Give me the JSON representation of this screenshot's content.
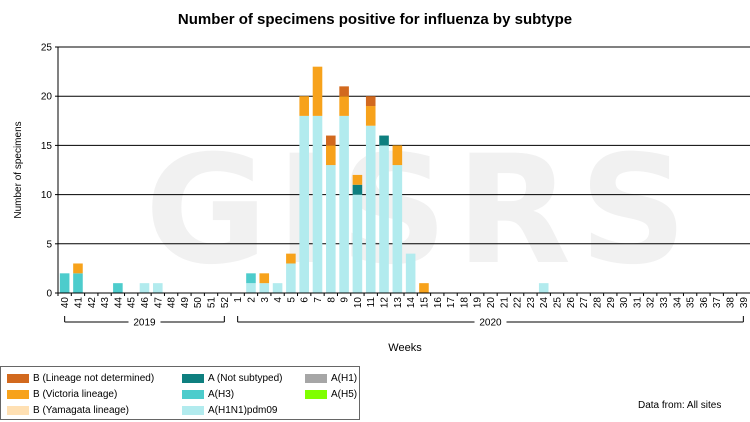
{
  "chart_data": {
    "type": "bar",
    "stacked": true,
    "title": "Number of specimens positive for influenza by subtype",
    "ylabel": "Number of specimens",
    "xlabel": "Weeks",
    "watermark": "GISRS",
    "ylim": [
      0,
      25
    ],
    "yticks": [
      0,
      5,
      10,
      15,
      20,
      25
    ],
    "grid": true,
    "categories": [
      "40",
      "41",
      "42",
      "43",
      "44",
      "45",
      "46",
      "47",
      "48",
      "49",
      "50",
      "51",
      "52",
      "1",
      "2",
      "3",
      "4",
      "5",
      "6",
      "7",
      "8",
      "9",
      "10",
      "11",
      "12",
      "13",
      "14",
      "15",
      "16",
      "17",
      "18",
      "19",
      "20",
      "21",
      "22",
      "23",
      "24",
      "25",
      "26",
      "27",
      "28",
      "29",
      "30",
      "31",
      "32",
      "33",
      "34",
      "35",
      "36",
      "37",
      "38",
      "39"
    ],
    "year_groups": [
      {
        "label": "2019",
        "from": 0,
        "to": 12
      },
      {
        "label": "2020",
        "from": 13,
        "to": 51
      }
    ],
    "series": [
      {
        "name": "A(H1N1)pdm09",
        "color": "#b2ebee",
        "values": [
          0,
          0,
          0,
          0,
          0,
          0,
          1,
          1,
          0,
          0,
          0,
          0,
          0,
          0,
          1,
          1,
          1,
          3,
          18,
          18,
          13,
          18,
          10,
          17,
          15,
          13,
          4,
          0,
          0,
          0,
          0,
          0,
          0,
          0,
          0,
          0,
          1,
          0,
          0,
          0,
          0,
          0,
          0,
          0,
          0,
          0,
          0,
          0,
          0,
          0,
          0,
          0
        ]
      },
      {
        "name": "A(H3)",
        "color": "#4dcccc",
        "values": [
          2,
          2,
          0,
          0,
          1,
          0,
          0,
          0,
          0,
          0,
          0,
          0,
          0,
          0,
          1,
          0,
          0,
          0,
          0,
          0,
          0,
          0,
          0,
          0,
          0,
          0,
          0,
          0,
          0,
          0,
          0,
          0,
          0,
          0,
          0,
          0,
          0,
          0,
          0,
          0,
          0,
          0,
          0,
          0,
          0,
          0,
          0,
          0,
          0,
          0,
          0,
          0
        ]
      },
      {
        "name": "A (Not subtyped)",
        "color": "#0e7f7f",
        "values": [
          0,
          0,
          0,
          0,
          0,
          0,
          0,
          0,
          0,
          0,
          0,
          0,
          0,
          0,
          0,
          0,
          0,
          0,
          0,
          0,
          0,
          0,
          1,
          0,
          1,
          0,
          0,
          0,
          0,
          0,
          0,
          0,
          0,
          0,
          0,
          0,
          0,
          0,
          0,
          0,
          0,
          0,
          0,
          0,
          0,
          0,
          0,
          0,
          0,
          0,
          0,
          0
        ]
      },
      {
        "name": "A(H1)",
        "color": "#a6a6a6",
        "values": [
          0,
          0,
          0,
          0,
          0,
          0,
          0,
          0,
          0,
          0,
          0,
          0,
          0,
          0,
          0,
          0,
          0,
          0,
          0,
          0,
          0,
          0,
          0,
          0,
          0,
          0,
          0,
          0,
          0,
          0,
          0,
          0,
          0,
          0,
          0,
          0,
          0,
          0,
          0,
          0,
          0,
          0,
          0,
          0,
          0,
          0,
          0,
          0,
          0,
          0,
          0,
          0
        ]
      },
      {
        "name": "A(H5)",
        "color": "#80ff00",
        "values": [
          0,
          0,
          0,
          0,
          0,
          0,
          0,
          0,
          0,
          0,
          0,
          0,
          0,
          0,
          0,
          0,
          0,
          0,
          0,
          0,
          0,
          0,
          0,
          0,
          0,
          0,
          0,
          0,
          0,
          0,
          0,
          0,
          0,
          0,
          0,
          0,
          0,
          0,
          0,
          0,
          0,
          0,
          0,
          0,
          0,
          0,
          0,
          0,
          0,
          0,
          0,
          0
        ]
      },
      {
        "name": "B (Yamagata lineage)",
        "color": "#ffe0b3",
        "values": [
          0,
          0,
          0,
          0,
          0,
          0,
          0,
          0,
          0,
          0,
          0,
          0,
          0,
          0,
          0,
          0,
          0,
          0,
          0,
          0,
          0,
          0,
          0,
          0,
          0,
          0,
          0,
          0,
          0,
          0,
          0,
          0,
          0,
          0,
          0,
          0,
          0,
          0,
          0,
          0,
          0,
          0,
          0,
          0,
          0,
          0,
          0,
          0,
          0,
          0,
          0,
          0
        ]
      },
      {
        "name": "B (Victoria lineage)",
        "color": "#f7a21b",
        "values": [
          0,
          1,
          0,
          0,
          0,
          0,
          0,
          0,
          0,
          0,
          0,
          0,
          0,
          0,
          0,
          1,
          0,
          1,
          2,
          5,
          2,
          2,
          1,
          2,
          0,
          2,
          0,
          1,
          0,
          0,
          0,
          0,
          0,
          0,
          0,
          0,
          0,
          0,
          0,
          0,
          0,
          0,
          0,
          0,
          0,
          0,
          0,
          0,
          0,
          0,
          0,
          0
        ]
      },
      {
        "name": "B (Lineage not determined)",
        "color": "#d2691e",
        "values": [
          0,
          0,
          0,
          0,
          0,
          0,
          0,
          0,
          0,
          0,
          0,
          0,
          0,
          0,
          0,
          0,
          0,
          0,
          0,
          0,
          1,
          1,
          0,
          1,
          0,
          0,
          0,
          0,
          0,
          0,
          0,
          0,
          0,
          0,
          0,
          0,
          0,
          0,
          0,
          0,
          0,
          0,
          0,
          0,
          0,
          0,
          0,
          0,
          0,
          0,
          0,
          0
        ]
      }
    ]
  },
  "legend": [
    {
      "label": "B (Lineage not determined)",
      "color": "#d2691e"
    },
    {
      "label": "B (Victoria lineage)",
      "color": "#f7a21b"
    },
    {
      "label": "B (Yamagata lineage)",
      "color": "#ffe0b3"
    },
    {
      "label": "A (Not subtyped)",
      "color": "#0e7f7f"
    },
    {
      "label": "A(H3)",
      "color": "#4dcccc"
    },
    {
      "label": "A(H1N1)pdm09",
      "color": "#b2ebee"
    },
    {
      "label": "A(H1)",
      "color": "#a6a6a6"
    },
    {
      "label": "A(H5)",
      "color": "#80ff00"
    }
  ],
  "source_note": "Data from: All sites"
}
